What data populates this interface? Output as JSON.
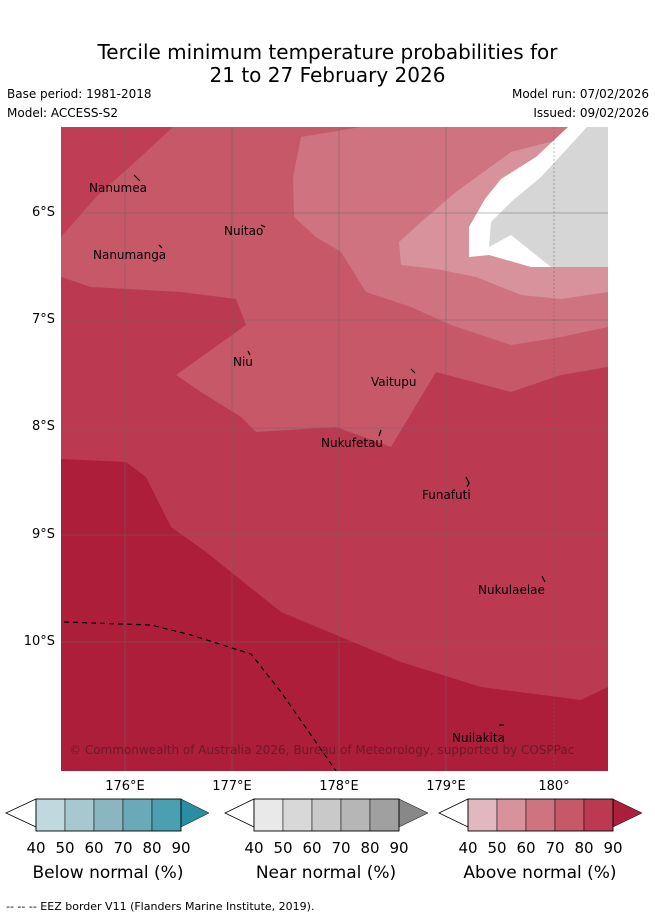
{
  "title": {
    "line1": "Tercile minimum temperature probabilities for",
    "line2": "21 to 27 February 2026"
  },
  "meta": {
    "base_period": "Base period: 1981-2018",
    "model": "Model: ACCESS-S2",
    "model_run": "Model run: 07/02/2026",
    "issued": "Issued: 09/02/2026"
  },
  "map": {
    "latitude_labels": [
      "6°S",
      "7°S",
      "8°S",
      "9°S",
      "10°S"
    ],
    "longitude_labels": [
      "176°E",
      "177°E",
      "178°E",
      "179°E",
      "180°"
    ],
    "places": {
      "nanumea": "Nanumea",
      "nuitao": "Nuitao",
      "nanumanga": "Nanumanga",
      "niu": "Niu",
      "vaitupu": "Vaitupu",
      "nukufetau": "Nukufetau",
      "funafuti": "Funafuti",
      "nukulaelae": "Nukulaelae",
      "nuilakita": "Nuilakita"
    },
    "copyright": "© Commonwealth of Australia 2026, Bureau of Meteorology, supported by COSPPac"
  },
  "colorbars": {
    "tick_values": [
      "40",
      "50",
      "60",
      "70",
      "80",
      "90"
    ],
    "below": {
      "title": "Below normal (%)",
      "colors": [
        "#bfd9df",
        "#a6c8ce",
        "#8ab6c1",
        "#6aaab8",
        "#4aa0b0",
        "#2a8ea2"
      ]
    },
    "near": {
      "title": "Near normal (%)",
      "colors": [
        "#e9e9e9",
        "#d8d8d8",
        "#c9c9c9",
        "#b6b6b6",
        "#a0a0a0",
        "#888888"
      ]
    },
    "above": {
      "title": "Above normal (%)",
      "colors": [
        "#e1b8bf",
        "#d8929b",
        "#cf7380",
        "#c65868",
        "#bb3a51",
        "#ad1e3b"
      ]
    }
  },
  "footer": {
    "eez_legend": "--  --  -- EEZ border V11 (Flanders Marine Institute, 2019)."
  }
}
